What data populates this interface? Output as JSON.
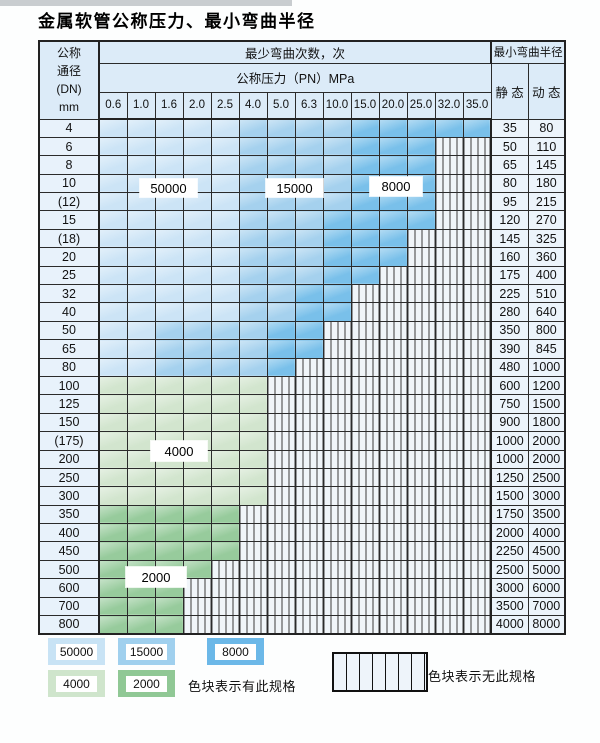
{
  "page": {
    "title": "金属软管公称压力、最小弯曲半径"
  },
  "table": {
    "header": {
      "dn_lines": [
        "公称",
        "通径",
        "(DN)",
        "mm"
      ],
      "cycles_title": "最少弯曲次数，次",
      "pressure_title": "公称压力（PN）MPa",
      "radius_title": "最小弯曲半径",
      "static_label": "静 态",
      "dynamic_label": "动 态",
      "pressures": [
        "0.6",
        "1.0",
        "1.6",
        "2.0",
        "2.5",
        "4.0",
        "5.0",
        "6.3",
        "10.0",
        "15.0",
        "20.0",
        "25.0",
        "32.0",
        "35.0"
      ]
    },
    "zone_legend_meaning": {
      "b1": "50000",
      "b2": "15000",
      "b3": "8000",
      "g1": "4000",
      "g2": "2000",
      "x": "无此规格"
    },
    "rows": [
      {
        "dn": "4",
        "cells": [
          "b1",
          "b1",
          "b1",
          "b1",
          "b1",
          "b2",
          "b2",
          "b2",
          "b2",
          "b3",
          "b3",
          "b3",
          "b3",
          "b3"
        ],
        "static": "35",
        "dynamic": "80"
      },
      {
        "dn": "6",
        "cells": [
          "b1",
          "b1",
          "b1",
          "b1",
          "b1",
          "b2",
          "b2",
          "b2",
          "b2",
          "b3",
          "b3",
          "b3",
          "x",
          "x"
        ],
        "static": "50",
        "dynamic": "110"
      },
      {
        "dn": "8",
        "cells": [
          "b1",
          "b1",
          "b1",
          "b1",
          "b1",
          "b2",
          "b2",
          "b2",
          "b2",
          "b3",
          "b3",
          "b3",
          "x",
          "x"
        ],
        "static": "65",
        "dynamic": "145"
      },
      {
        "dn": "10",
        "cells": [
          "b1",
          "b1",
          "b1",
          "b1",
          "b1",
          "b2",
          "b2",
          "b2",
          "b2",
          "b3",
          "b3",
          "b3",
          "x",
          "x"
        ],
        "static": "80",
        "dynamic": "180"
      },
      {
        "dn": "(12)",
        "cells": [
          "b1",
          "b1",
          "b1",
          "b1",
          "b1",
          "b2",
          "b2",
          "b2",
          "b2",
          "b3",
          "b3",
          "b3",
          "x",
          "x"
        ],
        "static": "95",
        "dynamic": "215"
      },
      {
        "dn": "15",
        "cells": [
          "b1",
          "b1",
          "b1",
          "b1",
          "b1",
          "b2",
          "b2",
          "b2",
          "b3",
          "b3",
          "b3",
          "b3",
          "x",
          "x"
        ],
        "static": "120",
        "dynamic": "270"
      },
      {
        "dn": "(18)",
        "cells": [
          "b1",
          "b1",
          "b1",
          "b1",
          "b1",
          "b2",
          "b2",
          "b2",
          "b3",
          "b3",
          "b3",
          "x",
          "x",
          "x"
        ],
        "static": "145",
        "dynamic": "325"
      },
      {
        "dn": "20",
        "cells": [
          "b1",
          "b1",
          "b1",
          "b1",
          "b1",
          "b2",
          "b2",
          "b2",
          "b3",
          "b3",
          "b3",
          "x",
          "x",
          "x"
        ],
        "static": "160",
        "dynamic": "360"
      },
      {
        "dn": "25",
        "cells": [
          "b1",
          "b1",
          "b1",
          "b1",
          "b1",
          "b2",
          "b2",
          "b2",
          "b3",
          "b3",
          "x",
          "x",
          "x",
          "x"
        ],
        "static": "175",
        "dynamic": "400"
      },
      {
        "dn": "32",
        "cells": [
          "b1",
          "b1",
          "b1",
          "b1",
          "b1",
          "b2",
          "b2",
          "b3",
          "b3",
          "x",
          "x",
          "x",
          "x",
          "x"
        ],
        "static": "225",
        "dynamic": "510"
      },
      {
        "dn": "40",
        "cells": [
          "b1",
          "b1",
          "b1",
          "b1",
          "b1",
          "b2",
          "b2",
          "b3",
          "b3",
          "x",
          "x",
          "x",
          "x",
          "x"
        ],
        "static": "280",
        "dynamic": "640"
      },
      {
        "dn": "50",
        "cells": [
          "b1",
          "b1",
          "b2",
          "b2",
          "b2",
          "b2",
          "b3",
          "b3",
          "x",
          "x",
          "x",
          "x",
          "x",
          "x"
        ],
        "static": "350",
        "dynamic": "800"
      },
      {
        "dn": "65",
        "cells": [
          "b1",
          "b1",
          "b2",
          "b2",
          "b2",
          "b2",
          "b3",
          "b3",
          "x",
          "x",
          "x",
          "x",
          "x",
          "x"
        ],
        "static": "390",
        "dynamic": "845"
      },
      {
        "dn": "80",
        "cells": [
          "b1",
          "b1",
          "b2",
          "b2",
          "b2",
          "b2",
          "b3",
          "x",
          "x",
          "x",
          "x",
          "x",
          "x",
          "x"
        ],
        "static": "480",
        "dynamic": "1000"
      },
      {
        "dn": "100",
        "cells": [
          "g1",
          "g1",
          "g1",
          "g1",
          "g1",
          "g1",
          "x",
          "x",
          "x",
          "x",
          "x",
          "x",
          "x",
          "x"
        ],
        "static": "600",
        "dynamic": "1200"
      },
      {
        "dn": "125",
        "cells": [
          "g1",
          "g1",
          "g1",
          "g1",
          "g1",
          "g1",
          "x",
          "x",
          "x",
          "x",
          "x",
          "x",
          "x",
          "x"
        ],
        "static": "750",
        "dynamic": "1500"
      },
      {
        "dn": "150",
        "cells": [
          "g1",
          "g1",
          "g1",
          "g1",
          "g1",
          "g1",
          "x",
          "x",
          "x",
          "x",
          "x",
          "x",
          "x",
          "x"
        ],
        "static": "900",
        "dynamic": "1800"
      },
      {
        "dn": "(175)",
        "cells": [
          "g1",
          "g1",
          "g1",
          "g1",
          "g1",
          "g1",
          "x",
          "x",
          "x",
          "x",
          "x",
          "x",
          "x",
          "x"
        ],
        "static": "1000",
        "dynamic": "2000"
      },
      {
        "dn": "200",
        "cells": [
          "g1",
          "g1",
          "g1",
          "g1",
          "g1",
          "g1",
          "x",
          "x",
          "x",
          "x",
          "x",
          "x",
          "x",
          "x"
        ],
        "static": "1000",
        "dynamic": "2000"
      },
      {
        "dn": "250",
        "cells": [
          "g1",
          "g1",
          "g1",
          "g1",
          "g1",
          "g1",
          "x",
          "x",
          "x",
          "x",
          "x",
          "x",
          "x",
          "x"
        ],
        "static": "1250",
        "dynamic": "2500"
      },
      {
        "dn": "300",
        "cells": [
          "g1",
          "g1",
          "g1",
          "g1",
          "g1",
          "g1",
          "x",
          "x",
          "x",
          "x",
          "x",
          "x",
          "x",
          "x"
        ],
        "static": "1500",
        "dynamic": "3000"
      },
      {
        "dn": "350",
        "cells": [
          "g2",
          "g2",
          "g2",
          "g2",
          "g2",
          "x",
          "x",
          "x",
          "x",
          "x",
          "x",
          "x",
          "x",
          "x"
        ],
        "static": "1750",
        "dynamic": "3500"
      },
      {
        "dn": "400",
        "cells": [
          "g2",
          "g2",
          "g2",
          "g2",
          "g2",
          "x",
          "x",
          "x",
          "x",
          "x",
          "x",
          "x",
          "x",
          "x"
        ],
        "static": "2000",
        "dynamic": "4000"
      },
      {
        "dn": "450",
        "cells": [
          "g2",
          "g2",
          "g2",
          "g2",
          "g2",
          "x",
          "x",
          "x",
          "x",
          "x",
          "x",
          "x",
          "x",
          "x"
        ],
        "static": "2250",
        "dynamic": "4500"
      },
      {
        "dn": "500",
        "cells": [
          "g2",
          "g2",
          "g2",
          "g2",
          "x",
          "x",
          "x",
          "x",
          "x",
          "x",
          "x",
          "x",
          "x",
          "x"
        ],
        "static": "2500",
        "dynamic": "5000"
      },
      {
        "dn": "600",
        "cells": [
          "g2",
          "g2",
          "g2",
          "x",
          "x",
          "x",
          "x",
          "x",
          "x",
          "x",
          "x",
          "x",
          "x",
          "x"
        ],
        "static": "3000",
        "dynamic": "6000"
      },
      {
        "dn": "700",
        "cells": [
          "g2",
          "g2",
          "g2",
          "x",
          "x",
          "x",
          "x",
          "x",
          "x",
          "x",
          "x",
          "x",
          "x",
          "x"
        ],
        "static": "3500",
        "dynamic": "7000"
      },
      {
        "dn": "800",
        "cells": [
          "g2",
          "g2",
          "g2",
          "x",
          "x",
          "x",
          "x",
          "x",
          "x",
          "x",
          "x",
          "x",
          "x",
          "x"
        ],
        "static": "4000",
        "dynamic": "8000"
      }
    ]
  },
  "overlay_labels": [
    {
      "text": "50000"
    },
    {
      "text": "15000"
    },
    {
      "text": "8000"
    },
    {
      "text": "4000"
    },
    {
      "text": "2000"
    }
  ],
  "legend": {
    "swatches": [
      {
        "label": "50000",
        "color": "#c8e3f5"
      },
      {
        "label": "15000",
        "color": "#a0d0ee"
      },
      {
        "label": "8000",
        "color": "#6cb8e8"
      },
      {
        "label": "4000",
        "color": "#cfe5cc"
      },
      {
        "label": "2000",
        "color": "#90c895"
      }
    ],
    "note_present": "色块表示有此规格",
    "note_absent": "色块表示无此规格"
  },
  "colors": {
    "cycles_50000": "#cce4f6",
    "cycles_15000": "#a5d1ee",
    "cycles_8000": "#79c0ea",
    "cycles_4000": "#d2e5ce",
    "cycles_2000": "#97cb9c",
    "no_spec_bg": "#f0f5f9",
    "header_bg": "#dcebf8",
    "border": "#2b2b2b"
  }
}
